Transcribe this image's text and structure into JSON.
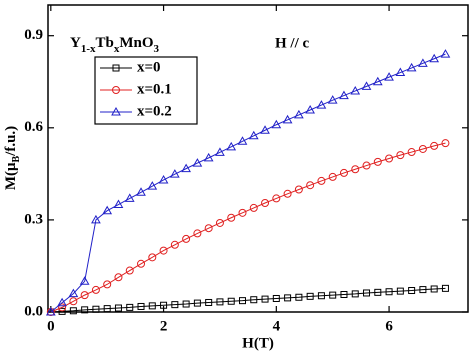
{
  "chart_data": {
    "type": "scatter",
    "title": [
      "Y",
      "1-x",
      "Tb",
      "x",
      "MnO",
      "3"
    ],
    "annotation": "H // c",
    "x_label": "H(T)",
    "y_label": [
      "M(μ",
      "B",
      "/f.u.)"
    ],
    "xlim": [
      -0.05,
      7.4
    ],
    "ylim": [
      0,
      1.0
    ],
    "xticks": [
      0,
      2,
      4,
      6
    ],
    "yticks": [
      {
        "value": 0,
        "label": "0.0"
      },
      0.3,
      0.6,
      0.9
    ],
    "legend": "upper left",
    "x": [
      0,
      0.2,
      0.4,
      0.6,
      0.8,
      1,
      1.2,
      1.4,
      1.6,
      1.8,
      2,
      2.2,
      2.4,
      2.6,
      2.8,
      3,
      3.2,
      3.4,
      3.6,
      3.8,
      4,
      4.2,
      4.4,
      4.6,
      4.8,
      5,
      5.2,
      5.4,
      5.6,
      5.8,
      6,
      6.2,
      6.4,
      6.6,
      6.8,
      7
    ],
    "series": [
      {
        "name": "x=0",
        "color": "#000000",
        "marker": "square",
        "values": [
          0,
          0.002,
          0.004,
          0.007,
          0.009,
          0.011,
          0.013,
          0.015,
          0.018,
          0.02,
          0.022,
          0.024,
          0.026,
          0.029,
          0.031,
          0.033,
          0.035,
          0.037,
          0.04,
          0.042,
          0.044,
          0.046,
          0.048,
          0.051,
          0.053,
          0.055,
          0.057,
          0.059,
          0.062,
          0.064,
          0.066,
          0.068,
          0.07,
          0.073,
          0.075,
          0.077
        ]
      },
      {
        "name": "x=0.1",
        "color": "#e02020",
        "marker": "circle",
        "values": [
          0,
          0.015,
          0.035,
          0.055,
          0.072,
          0.09,
          0.113,
          0.135,
          0.157,
          0.178,
          0.2,
          0.219,
          0.238,
          0.256,
          0.273,
          0.29,
          0.307,
          0.323,
          0.339,
          0.355,
          0.37,
          0.385,
          0.399,
          0.413,
          0.427,
          0.44,
          0.453,
          0.465,
          0.477,
          0.489,
          0.5,
          0.511,
          0.521,
          0.531,
          0.541,
          0.55
        ]
      },
      {
        "name": "x=0.2",
        "color": "#2020c8",
        "marker": "triangle",
        "values": [
          0,
          0.03,
          0.06,
          0.1,
          0.3,
          0.33,
          0.35,
          0.37,
          0.39,
          0.41,
          0.43,
          0.449,
          0.467,
          0.485,
          0.502,
          0.52,
          0.538,
          0.556,
          0.574,
          0.592,
          0.61,
          0.626,
          0.642,
          0.658,
          0.674,
          0.69,
          0.705,
          0.72,
          0.735,
          0.75,
          0.765,
          0.78,
          0.795,
          0.81,
          0.825,
          0.84
        ]
      }
    ]
  }
}
